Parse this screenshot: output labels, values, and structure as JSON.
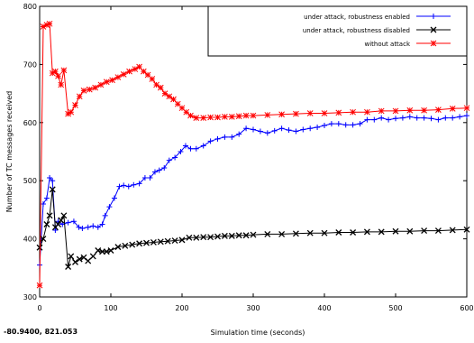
{
  "coordinate_readout": "-80.9400,  821.053",
  "chart_data": {
    "type": "line",
    "title": "",
    "xlabel": "Simulation time (seconds)",
    "ylabel": "Number of TC messages received",
    "xlim": [
      0,
      600
    ],
    "ylim": [
      300,
      800
    ],
    "xticks": [
      0,
      100,
      200,
      300,
      400,
      500,
      600
    ],
    "yticks": [
      300,
      400,
      500,
      600,
      700,
      800
    ],
    "grid": false,
    "legend_position": "top-right",
    "series": [
      {
        "name": "under attack, robustness enabled",
        "color": "#0000ff",
        "marker": "plus",
        "points": [
          [
            0,
            355
          ],
          [
            5,
            460
          ],
          [
            10,
            470
          ],
          [
            14,
            505
          ],
          [
            18,
            500
          ],
          [
            22,
            415
          ],
          [
            26,
            430
          ],
          [
            32,
            425
          ],
          [
            40,
            428
          ],
          [
            48,
            430
          ],
          [
            55,
            420
          ],
          [
            60,
            418
          ],
          [
            68,
            420
          ],
          [
            75,
            422
          ],
          [
            82,
            420
          ],
          [
            88,
            425
          ],
          [
            92,
            440
          ],
          [
            98,
            455
          ],
          [
            105,
            470
          ],
          [
            112,
            490
          ],
          [
            118,
            492
          ],
          [
            125,
            490
          ],
          [
            132,
            493
          ],
          [
            140,
            495
          ],
          [
            148,
            505
          ],
          [
            155,
            505
          ],
          [
            162,
            515
          ],
          [
            168,
            518
          ],
          [
            175,
            522
          ],
          [
            182,
            535
          ],
          [
            190,
            540
          ],
          [
            198,
            550
          ],
          [
            205,
            560
          ],
          [
            212,
            555
          ],
          [
            220,
            555
          ],
          [
            230,
            560
          ],
          [
            240,
            568
          ],
          [
            250,
            572
          ],
          [
            260,
            575
          ],
          [
            270,
            575
          ],
          [
            280,
            580
          ],
          [
            290,
            590
          ],
          [
            300,
            588
          ],
          [
            310,
            585
          ],
          [
            320,
            582
          ],
          [
            330,
            586
          ],
          [
            340,
            590
          ],
          [
            350,
            587
          ],
          [
            360,
            585
          ],
          [
            370,
            588
          ],
          [
            380,
            590
          ],
          [
            390,
            592
          ],
          [
            400,
            595
          ],
          [
            410,
            598
          ],
          [
            420,
            598
          ],
          [
            430,
            596
          ],
          [
            440,
            596
          ],
          [
            450,
            598
          ],
          [
            460,
            605
          ],
          [
            470,
            605
          ],
          [
            480,
            608
          ],
          [
            490,
            605
          ],
          [
            500,
            607
          ],
          [
            510,
            608
          ],
          [
            520,
            610
          ],
          [
            530,
            608
          ],
          [
            540,
            608
          ],
          [
            550,
            607
          ],
          [
            560,
            605
          ],
          [
            570,
            608
          ],
          [
            580,
            608
          ],
          [
            590,
            610
          ],
          [
            600,
            612
          ]
        ]
      },
      {
        "name": "under attack, robustness disabled",
        "color": "#000000",
        "marker": "x",
        "points": [
          [
            0,
            385
          ],
          [
            5,
            400
          ],
          [
            10,
            425
          ],
          [
            14,
            440
          ],
          [
            18,
            485
          ],
          [
            22,
            420
          ],
          [
            26,
            425
          ],
          [
            30,
            432
          ],
          [
            34,
            440
          ],
          [
            40,
            352
          ],
          [
            44,
            370
          ],
          [
            50,
            360
          ],
          [
            56,
            365
          ],
          [
            62,
            368
          ],
          [
            68,
            362
          ],
          [
            75,
            370
          ],
          [
            82,
            380
          ],
          [
            88,
            378
          ],
          [
            94,
            378
          ],
          [
            100,
            380
          ],
          [
            110,
            386
          ],
          [
            120,
            388
          ],
          [
            130,
            390
          ],
          [
            140,
            392
          ],
          [
            150,
            393
          ],
          [
            160,
            394
          ],
          [
            170,
            395
          ],
          [
            180,
            396
          ],
          [
            190,
            397
          ],
          [
            200,
            398
          ],
          [
            210,
            402
          ],
          [
            220,
            402
          ],
          [
            230,
            403
          ],
          [
            240,
            403
          ],
          [
            250,
            404
          ],
          [
            260,
            405
          ],
          [
            270,
            405
          ],
          [
            280,
            406
          ],
          [
            290,
            406
          ],
          [
            300,
            407
          ],
          [
            320,
            408
          ],
          [
            340,
            408
          ],
          [
            360,
            409
          ],
          [
            380,
            410
          ],
          [
            400,
            410
          ],
          [
            420,
            411
          ],
          [
            440,
            411
          ],
          [
            460,
            412
          ],
          [
            480,
            412
          ],
          [
            500,
            413
          ],
          [
            520,
            413
          ],
          [
            540,
            414
          ],
          [
            560,
            414
          ],
          [
            580,
            415
          ],
          [
            600,
            416
          ]
        ]
      },
      {
        "name": "without attack",
        "color": "#ff0000",
        "marker": "asterisk",
        "points": [
          [
            0,
            320
          ],
          [
            5,
            765
          ],
          [
            10,
            768
          ],
          [
            14,
            770
          ],
          [
            18,
            685
          ],
          [
            22,
            688
          ],
          [
            26,
            680
          ],
          [
            30,
            665
          ],
          [
            34,
            690
          ],
          [
            40,
            615
          ],
          [
            44,
            618
          ],
          [
            50,
            630
          ],
          [
            56,
            645
          ],
          [
            62,
            655
          ],
          [
            70,
            657
          ],
          [
            78,
            660
          ],
          [
            86,
            665
          ],
          [
            94,
            670
          ],
          [
            102,
            673
          ],
          [
            110,
            678
          ],
          [
            118,
            683
          ],
          [
            126,
            688
          ],
          [
            134,
            692
          ],
          [
            140,
            696
          ],
          [
            146,
            688
          ],
          [
            152,
            682
          ],
          [
            158,
            675
          ],
          [
            164,
            665
          ],
          [
            170,
            660
          ],
          [
            176,
            650
          ],
          [
            182,
            645
          ],
          [
            188,
            640
          ],
          [
            194,
            632
          ],
          [
            200,
            625
          ],
          [
            206,
            618
          ],
          [
            212,
            612
          ],
          [
            220,
            608
          ],
          [
            230,
            608
          ],
          [
            240,
            609
          ],
          [
            250,
            609
          ],
          [
            260,
            610
          ],
          [
            270,
            610
          ],
          [
            280,
            611
          ],
          [
            290,
            612
          ],
          [
            300,
            612
          ],
          [
            320,
            613
          ],
          [
            340,
            614
          ],
          [
            360,
            615
          ],
          [
            380,
            616
          ],
          [
            400,
            616
          ],
          [
            420,
            617
          ],
          [
            440,
            618
          ],
          [
            460,
            618
          ],
          [
            480,
            620
          ],
          [
            500,
            620
          ],
          [
            520,
            621
          ],
          [
            540,
            621
          ],
          [
            560,
            622
          ],
          [
            580,
            624
          ],
          [
            600,
            625
          ]
        ]
      }
    ]
  }
}
